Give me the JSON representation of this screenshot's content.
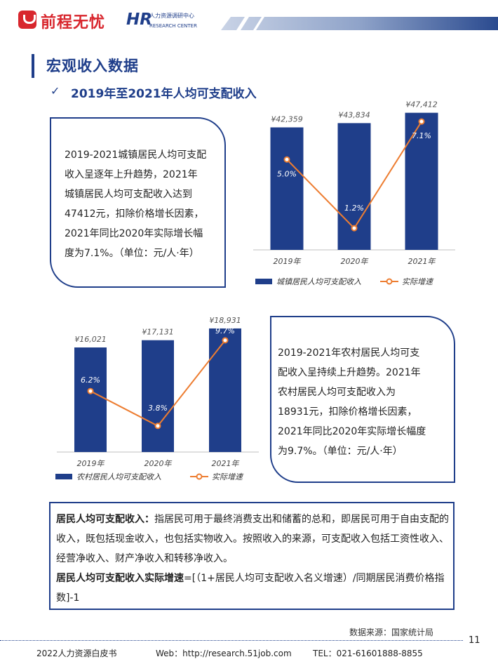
{
  "header": {
    "brand": "前程无忧",
    "hr_logo": "HR",
    "hr_cn": "人力资源调研中心",
    "hr_en": "RESEARCH CENTER"
  },
  "section_title": "宏观收入数据",
  "sub_title": "2019年至2021年人均可支配收入",
  "check_icon": "✓",
  "box1_lines": [
    "2019-2021城镇居民人均可支配",
    "收入呈逐年上升趋势，2021年",
    "城镇居民人均可支配收入达到",
    "47412元，扣除价格增长因素，",
    "2021年同比2020年实际增长幅",
    "度为7.1%。（单位：元/人·年）"
  ],
  "box2_lines": [
    "2019-2021年农村居民人均可支",
    "配收入呈持续上升趋势。2021年",
    "农村居民人均可支配收入为",
    "18931元，扣除价格增长因素，",
    "2021年同比2020年实际增长幅度",
    "为9.7%。（单位：元/人·年）"
  ],
  "definition": {
    "term1": "居民人均可支配收入：",
    "text1": "指居民可用于最终消费支出和储蓄的总和，即居民可用于自由支配的收入，既包括现金收入，也包括实物收入。按照收入的来源，可支配收入包括工资性收入、经营净收入、财产净收入和转移净收入。",
    "term2": "居民人均可支配收入实际增速",
    "text2": "=[（1+居民人均可支配收入名义增速）/同期居民消费价格指数]-1"
  },
  "colors": {
    "bar": "#1f3e8a",
    "line": "#ed7d31"
  },
  "chart_data": [
    {
      "type": "bar",
      "categories": [
        "2019年",
        "2020年",
        "2021年"
      ],
      "series": [
        {
          "name": "城镇居民人均可支配收入",
          "values": [
            42359,
            43834,
            47412
          ],
          "labels": [
            "¥42,359",
            "¥43,834",
            "¥47,412"
          ]
        },
        {
          "name": "实际增速",
          "type": "line",
          "values": [
            5.0,
            1.2,
            7.1
          ],
          "labels": [
            "5.0%",
            "1.2%",
            "7.1%"
          ]
        }
      ],
      "y_range": [
        0,
        50000
      ],
      "line_range": [
        0,
        8
      ]
    },
    {
      "type": "bar",
      "categories": [
        "2019年",
        "2020年",
        "2021年"
      ],
      "series": [
        {
          "name": "农村居民人均可支配收入",
          "values": [
            16021,
            17131,
            18931
          ],
          "labels": [
            "¥16,021",
            "¥17,131",
            "¥18,931"
          ]
        },
        {
          "name": "实际增速",
          "type": "line",
          "values": [
            6.2,
            3.8,
            9.7
          ],
          "labels": [
            "6.2%",
            "3.8%",
            "9.7%"
          ]
        }
      ],
      "y_range": [
        0,
        20000
      ],
      "line_range": [
        2,
        11
      ]
    }
  ],
  "source": "数据来源：国家统计局",
  "page_number": "11",
  "footer": {
    "left": "2022人力资源白皮书",
    "mid": "Web：http://research.51job.com",
    "right": "TEL：021-61601888-8855"
  }
}
